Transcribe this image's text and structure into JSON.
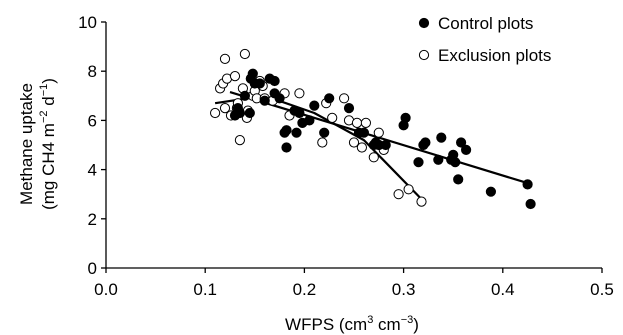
{
  "chart_data": {
    "type": "scatter",
    "xlabel": {
      "base": "WFPS (cm",
      "sup1": "3",
      "mid": " cm",
      "sup2": "−3",
      "end": ")"
    },
    "ylabel": {
      "line1": "Methane uptake",
      "line2_a": "(mg CH4 m",
      "line2_sup1": "−2",
      "line2_b": " d",
      "line2_sup2": "−1",
      "line2_c": ")"
    },
    "xlim": [
      0.0,
      0.5
    ],
    "ylim": [
      0,
      10
    ],
    "xticks": [
      "0.0",
      "0.1",
      "0.2",
      "0.3",
      "0.4",
      "0.5"
    ],
    "yticks": [
      "0",
      "2",
      "4",
      "6",
      "8",
      "10"
    ],
    "grid": false,
    "legend_position": "top-right",
    "series": [
      {
        "name": "Control plots",
        "marker": "filled-circle",
        "color": "#000000",
        "points": [
          [
            0.13,
            6.2
          ],
          [
            0.133,
            6.5
          ],
          [
            0.135,
            6.3
          ],
          [
            0.14,
            7.0
          ],
          [
            0.145,
            6.3
          ],
          [
            0.146,
            7.7
          ],
          [
            0.148,
            7.9
          ],
          [
            0.15,
            7.5
          ],
          [
            0.155,
            7.5
          ],
          [
            0.16,
            6.8
          ],
          [
            0.165,
            7.7
          ],
          [
            0.17,
            7.6
          ],
          [
            0.17,
            7.1
          ],
          [
            0.175,
            6.9
          ],
          [
            0.18,
            5.5
          ],
          [
            0.182,
            5.6
          ],
          [
            0.182,
            4.9
          ],
          [
            0.19,
            6.4
          ],
          [
            0.192,
            5.5
          ],
          [
            0.195,
            6.3
          ],
          [
            0.198,
            5.9
          ],
          [
            0.205,
            6.0
          ],
          [
            0.21,
            6.6
          ],
          [
            0.22,
            5.5
          ],
          [
            0.225,
            6.9
          ],
          [
            0.245,
            6.5
          ],
          [
            0.255,
            5.5
          ],
          [
            0.26,
            5.5
          ],
          [
            0.27,
            5.0
          ],
          [
            0.272,
            5.1
          ],
          [
            0.275,
            5.0
          ],
          [
            0.282,
            5.0
          ],
          [
            0.3,
            5.8
          ],
          [
            0.302,
            6.1
          ],
          [
            0.315,
            4.3
          ],
          [
            0.32,
            5.0
          ],
          [
            0.322,
            5.1
          ],
          [
            0.335,
            4.4
          ],
          [
            0.338,
            5.3
          ],
          [
            0.348,
            4.4
          ],
          [
            0.35,
            4.6
          ],
          [
            0.352,
            4.3
          ],
          [
            0.355,
            3.6
          ],
          [
            0.358,
            5.1
          ],
          [
            0.363,
            4.8
          ],
          [
            0.388,
            3.1
          ],
          [
            0.425,
            3.4
          ],
          [
            0.428,
            2.6
          ]
        ],
        "trend_line": [
          [
            0.125,
            7.15
          ],
          [
            0.425,
            3.45
          ]
        ]
      },
      {
        "name": "Exclusion plots",
        "marker": "open-circle",
        "color": "#000000",
        "points": [
          [
            0.11,
            6.3
          ],
          [
            0.115,
            7.3
          ],
          [
            0.118,
            7.5
          ],
          [
            0.12,
            6.5
          ],
          [
            0.12,
            8.5
          ],
          [
            0.122,
            7.7
          ],
          [
            0.126,
            6.2
          ],
          [
            0.13,
            7.8
          ],
          [
            0.132,
            6.5
          ],
          [
            0.133,
            6.7
          ],
          [
            0.135,
            5.2
          ],
          [
            0.138,
            7.3
          ],
          [
            0.14,
            8.7
          ],
          [
            0.142,
            6.1
          ],
          [
            0.143,
            6.4
          ],
          [
            0.148,
            7.0
          ],
          [
            0.15,
            7.2
          ],
          [
            0.152,
            6.9
          ],
          [
            0.155,
            7.6
          ],
          [
            0.158,
            7.4
          ],
          [
            0.16,
            6.9
          ],
          [
            0.168,
            6.8
          ],
          [
            0.18,
            7.1
          ],
          [
            0.185,
            6.2
          ],
          [
            0.195,
            7.1
          ],
          [
            0.218,
            5.1
          ],
          [
            0.222,
            6.7
          ],
          [
            0.228,
            6.1
          ],
          [
            0.24,
            6.9
          ],
          [
            0.245,
            6.0
          ],
          [
            0.25,
            5.1
          ],
          [
            0.253,
            5.9
          ],
          [
            0.258,
            4.9
          ],
          [
            0.262,
            5.9
          ],
          [
            0.27,
            4.5
          ],
          [
            0.275,
            5.5
          ],
          [
            0.28,
            4.8
          ],
          [
            0.295,
            3.0
          ],
          [
            0.305,
            3.2
          ],
          [
            0.318,
            2.7
          ]
        ],
        "trend_line": [
          [
            0.11,
            6.7
          ],
          [
            0.16,
            7.0
          ],
          [
            0.21,
            6.3
          ],
          [
            0.26,
            5.2
          ],
          [
            0.318,
            2.8
          ]
        ]
      }
    ]
  }
}
